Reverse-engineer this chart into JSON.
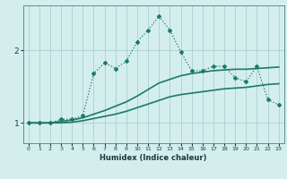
{
  "xlabel": "Humidex (Indice chaleur)",
  "background_color": "#d4eeee",
  "grid_color": "#aad0d0",
  "line_color": "#1a7a6a",
  "x_ticks": [
    0,
    1,
    2,
    3,
    4,
    5,
    6,
    7,
    8,
    9,
    10,
    11,
    12,
    13,
    14,
    15,
    16,
    17,
    18,
    19,
    20,
    21,
    22,
    23
  ],
  "y_ticks": [
    1,
    2
  ],
  "xlim": [
    -0.5,
    23.5
  ],
  "ylim": [
    0.72,
    2.62
  ],
  "series": [
    {
      "x": [
        0,
        1,
        2,
        3,
        4,
        5,
        6,
        7,
        8,
        9,
        10,
        11,
        12,
        13,
        14,
        15,
        16,
        17,
        18,
        19,
        20,
        21,
        22,
        23
      ],
      "y": [
        1.0,
        1.0,
        1.0,
        1.05,
        1.05,
        1.1,
        1.68,
        1.83,
        1.75,
        1.85,
        2.12,
        2.28,
        2.47,
        2.28,
        1.98,
        1.72,
        1.72,
        1.78,
        1.78,
        1.62,
        1.57,
        1.78,
        1.32,
        1.25
      ],
      "style": ":",
      "marker": "D",
      "markersize": 2.0,
      "linewidth": 0.9
    },
    {
      "x": [
        0,
        1,
        2,
        3,
        4,
        5,
        6,
        7,
        8,
        9,
        10,
        11,
        12,
        13,
        14,
        15,
        16,
        17,
        18,
        19,
        20,
        21,
        22,
        23
      ],
      "y": [
        1.0,
        1.0,
        1.0,
        1.02,
        1.04,
        1.07,
        1.12,
        1.17,
        1.23,
        1.29,
        1.37,
        1.46,
        1.55,
        1.6,
        1.65,
        1.68,
        1.7,
        1.72,
        1.73,
        1.74,
        1.74,
        1.75,
        1.76,
        1.77
      ],
      "style": "-",
      "marker": null,
      "markersize": 0,
      "linewidth": 1.2
    },
    {
      "x": [
        0,
        1,
        2,
        3,
        4,
        5,
        6,
        7,
        8,
        9,
        10,
        11,
        12,
        13,
        14,
        15,
        16,
        17,
        18,
        19,
        20,
        21,
        22,
        23
      ],
      "y": [
        1.0,
        1.0,
        1.0,
        1.0,
        1.01,
        1.03,
        1.06,
        1.09,
        1.12,
        1.16,
        1.21,
        1.26,
        1.31,
        1.36,
        1.39,
        1.41,
        1.43,
        1.45,
        1.47,
        1.48,
        1.49,
        1.51,
        1.53,
        1.54
      ],
      "style": "-",
      "marker": null,
      "markersize": 0,
      "linewidth": 1.2
    }
  ]
}
